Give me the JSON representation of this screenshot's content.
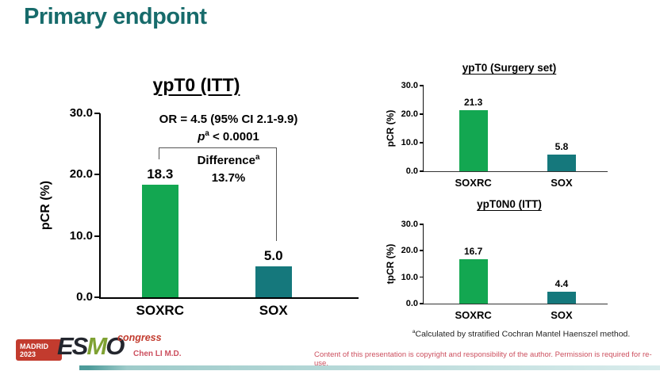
{
  "title": "Primary endpoint",
  "chart_data": [
    {
      "type": "bar",
      "title": "ypT0 (ITT)",
      "ylabel": "pCR (%)",
      "ylim": [
        0,
        30
      ],
      "yticks": [
        "0.0",
        "10.0",
        "20.0",
        "30.0"
      ],
      "grid": false,
      "legend": "none",
      "categories": [
        "SOXRC",
        "SOX"
      ],
      "values": [
        18.3,
        5.0
      ],
      "value_labels": [
        "18.3",
        "5.0"
      ],
      "bar_colors": [
        "#13a751",
        "#15787c"
      ],
      "layout": {
        "bar_centers_pct": [
          23,
          67
        ],
        "bar_width_pct": 14.2
      },
      "annotations": {
        "or_line": "OR = 4.5 (95% CI 2.1-9.9)",
        "p_symbol": "p",
        "p_sup": "a",
        "p_rest": " < 0.0001",
        "difference_label": "Difference",
        "difference_sup": "a",
        "difference_value": "13.7%"
      }
    },
    {
      "type": "bar",
      "title": "ypT0 (Surgery set)",
      "ylabel": "pCR (%)",
      "ylim": [
        0,
        30
      ],
      "yticks": [
        "0.0",
        "10.0",
        "20.0",
        "30.0"
      ],
      "grid": false,
      "legend": "none",
      "categories": [
        "SOXRC",
        "SOX"
      ],
      "values": [
        21.3,
        5.8
      ],
      "value_labels": [
        "21.3",
        "5.8"
      ],
      "bar_colors": [
        "#13a751",
        "#15787c"
      ],
      "layout": {
        "bar_centers_pct": [
          27,
          75
        ],
        "bar_width_pct": 15.5
      }
    },
    {
      "type": "bar",
      "title": "ypT0N0 (ITT)",
      "ylabel": "tpCR (%)",
      "ylim": [
        0,
        30
      ],
      "yticks": [
        "0.0",
        "10.0",
        "20.0",
        "30.0"
      ],
      "grid": false,
      "legend": "none",
      "categories": [
        "SOXRC",
        "SOX"
      ],
      "values": [
        16.7,
        4.4
      ],
      "value_labels": [
        "16.7",
        "4.4"
      ],
      "bar_colors": [
        "#13a751",
        "#15787c"
      ],
      "layout": {
        "bar_centers_pct": [
          27,
          75
        ],
        "bar_width_pct": 15.5
      }
    }
  ],
  "footnote_sup": "a",
  "footnote": "Calculated by stratified Cochran Mantel Haenszel method.",
  "footer": {
    "author": "Chen LI M.D.",
    "copyright": "Content of this presentation is copyright and responsibility of the author. Permission is required for re-use.",
    "logo": {
      "city": "MADRID",
      "year": "2023",
      "org_es": "ES",
      "org_m": "M",
      "org_o": "O",
      "suffix": "congress"
    }
  },
  "colors": {
    "accent_teal": "#176b6b",
    "bar_green": "#13a751",
    "bar_teal": "#15787c",
    "footer_red": "#cc4f5e",
    "logo_red": "#c23b2e",
    "logo_olive": "#7fa233"
  }
}
